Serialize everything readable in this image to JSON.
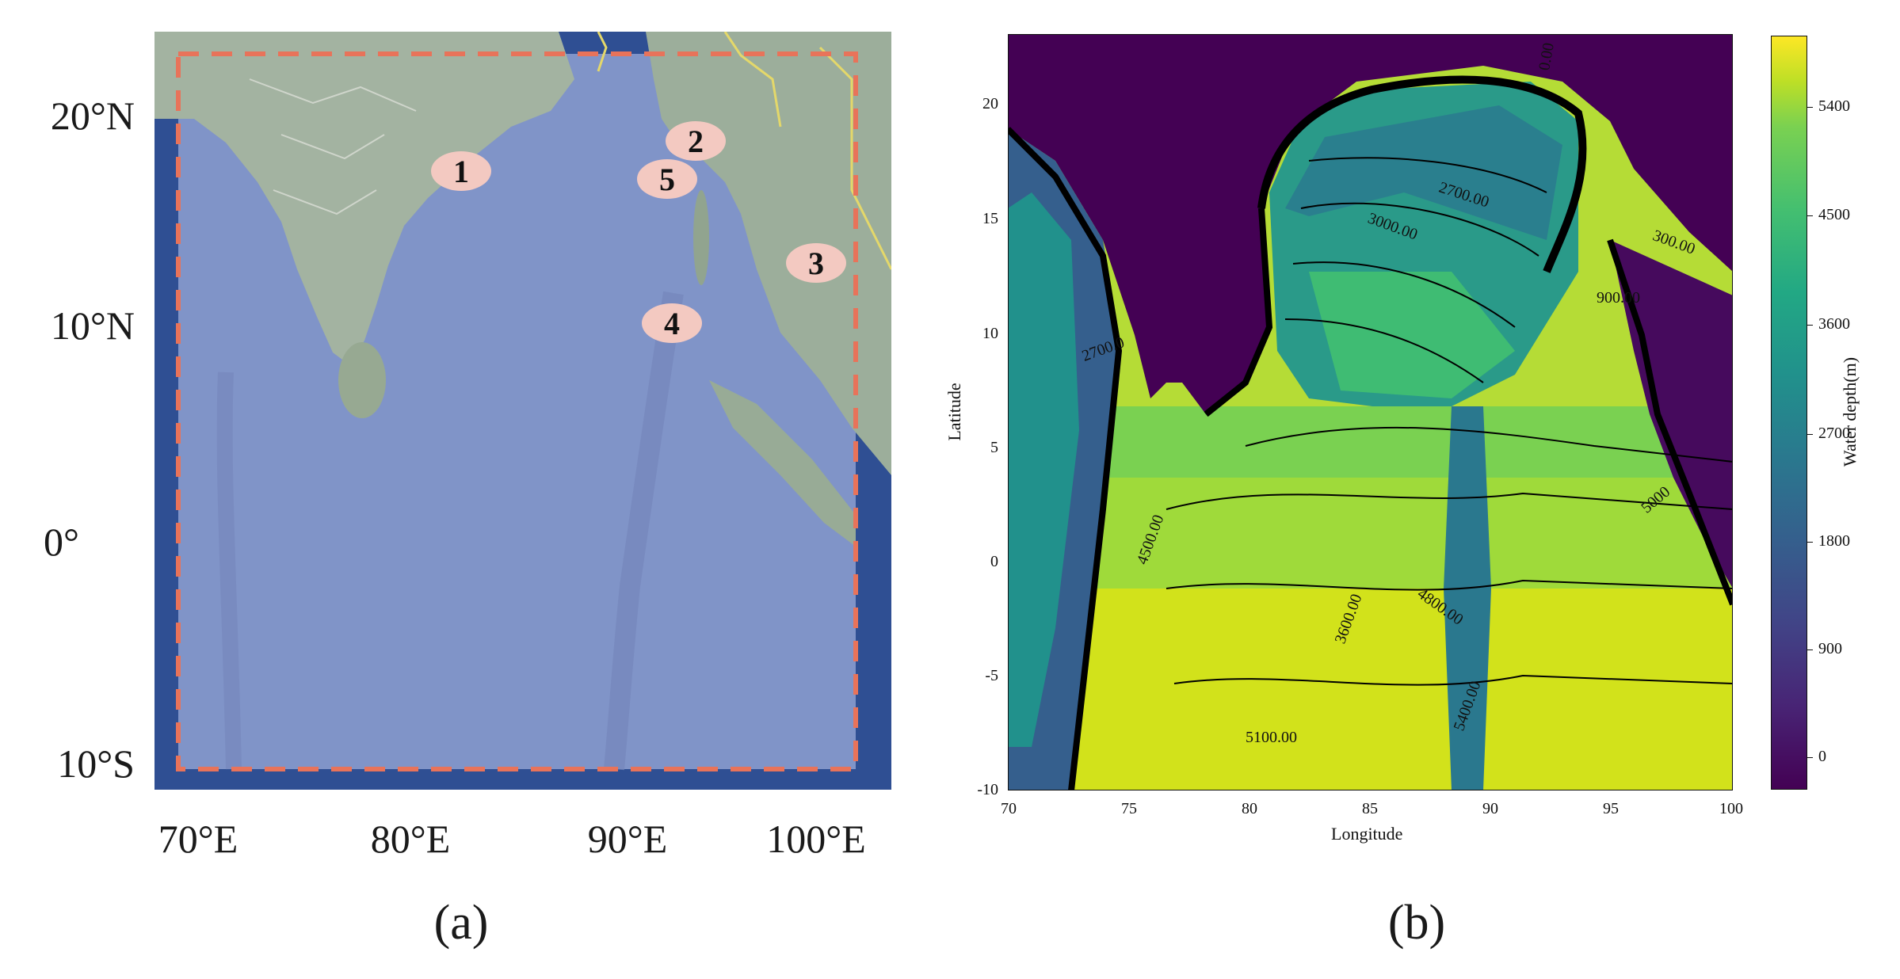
{
  "figure": {
    "panel_a": {
      "caption": "(a)",
      "lat_labels": [
        "20°N",
        "10°N",
        "0°",
        "10°S"
      ],
      "lon_labels": [
        "70°E",
        "80°E",
        "90°E",
        "100°E"
      ],
      "markers": [
        "1",
        "2",
        "3",
        "4",
        "5"
      ],
      "colors": {
        "ocean": "#7f93c6",
        "land": "#9fb0a0",
        "box_dash": "#e8735a",
        "marker_fill": "#f3c9c1",
        "border_lines": "#e4d86a"
      }
    },
    "panel_b": {
      "caption": "(b)",
      "xlabel": "Longitude",
      "ylabel": "Latitude",
      "x_ticks": [
        "70",
        "75",
        "80",
        "85",
        "90",
        "95",
        "100"
      ],
      "y_ticks": [
        "20",
        "15",
        "10",
        "5",
        "0",
        "-5",
        "-10"
      ],
      "colorbar_label": "Water depth(m)",
      "colorbar_ticks": [
        "5400",
        "4500",
        "3600",
        "2700",
        "1800",
        "900",
        "0"
      ],
      "contour_labels": [
        "0.00",
        "2700.00",
        "3000.00",
        "300.00",
        "900.00",
        "4500.00",
        "4800.00",
        "5100.00",
        "5400.00",
        "3600.00",
        "5000",
        "2700.0"
      ],
      "colormap": "viridis"
    }
  },
  "chart_data": {
    "type": "heatmap",
    "title": "",
    "xlabel": "Longitude",
    "ylabel": "Latitude",
    "xlim": [
      70,
      100
    ],
    "ylim": [
      -10,
      23
    ],
    "colorbar": {
      "label": "Water depth(m)",
      "range": [
        -300,
        6000
      ],
      "ticks": [
        0,
        900,
        1800,
        2700,
        3600,
        4500,
        5400
      ]
    },
    "contour_levels_labeled": [
      0,
      300,
      900,
      2700,
      3000,
      3600,
      4500,
      4800,
      5100,
      5400
    ]
  }
}
